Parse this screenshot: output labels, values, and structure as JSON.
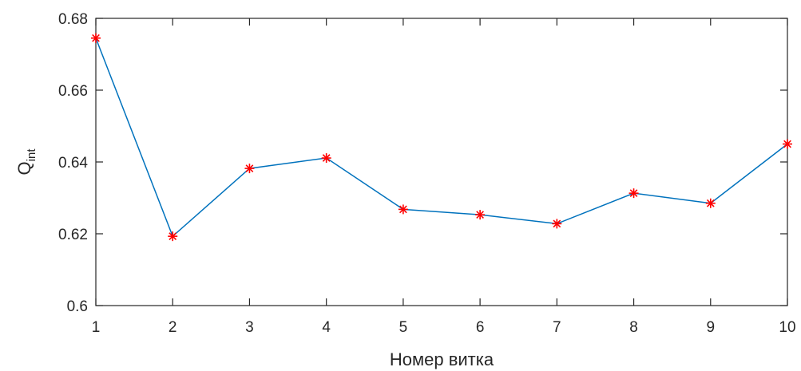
{
  "chart_data": {
    "type": "line",
    "title": "",
    "xlabel": "Номер витка",
    "ylabel_main": "Q",
    "ylabel_sub": "int",
    "xlim": [
      1,
      10
    ],
    "ylim": [
      0.6,
      0.68
    ],
    "xticks": [
      "1",
      "2",
      "3",
      "4",
      "5",
      "6",
      "7",
      "8",
      "9",
      "10"
    ],
    "yticks": [
      "0.6",
      "0.62",
      "0.64",
      "0.66",
      "0.68"
    ],
    "grid": false,
    "legend": "none",
    "series": [
      {
        "x": [
          1,
          2,
          3,
          4,
          5,
          6,
          7,
          8,
          9,
          10
        ],
        "y": [
          0.6745,
          0.6193,
          0.6382,
          0.6411,
          0.6268,
          0.6253,
          0.6228,
          0.6313,
          0.6285,
          0.645
        ],
        "line_color": "#0072BD",
        "marker": "asterisk",
        "marker_color": "#FF0000"
      }
    ]
  }
}
